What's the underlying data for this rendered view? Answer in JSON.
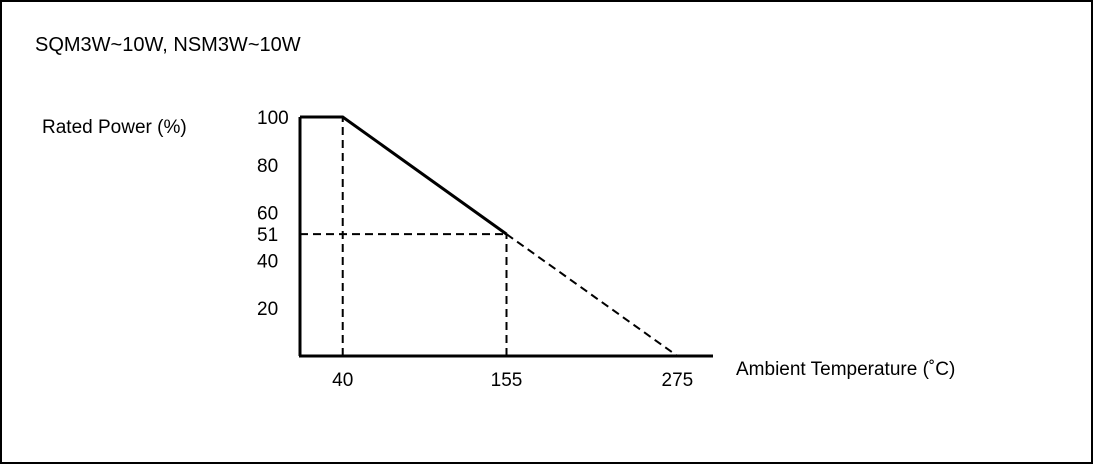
{
  "chart_data": {
    "type": "line",
    "title": "SQM3W~10W, NSM3W~10W",
    "ylabel": "Rated Power (%)",
    "xlabel": "Ambient Temperature (˚C)",
    "xlim": [
      10,
      300
    ],
    "ylim": [
      0,
      100
    ],
    "x_ticks": [
      40,
      155,
      275
    ],
    "x_tick_labels": [
      "40",
      "155",
      "275"
    ],
    "y_ticks": [
      20,
      40,
      51,
      60,
      80,
      100
    ],
    "y_tick_labels": [
      "20",
      "40",
      "51",
      "60",
      "80",
      "100"
    ],
    "series": [
      {
        "style": "solid",
        "x": [
          10,
          40,
          155
        ],
        "y": [
          100,
          100,
          51
        ]
      },
      {
        "style": "dashed",
        "x": [
          155,
          275
        ],
        "y": [
          51,
          0
        ]
      }
    ],
    "reference_lines": [
      {
        "from": [
          40,
          0
        ],
        "to": [
          40,
          100
        ]
      },
      {
        "from": [
          10,
          51
        ],
        "to": [
          155,
          51
        ]
      },
      {
        "from": [
          155,
          0
        ],
        "to": [
          155,
          51
        ]
      }
    ],
    "grid": false,
    "colors": {
      "line": "#000000",
      "background": "#ffffff",
      "border": "#000000"
    }
  }
}
